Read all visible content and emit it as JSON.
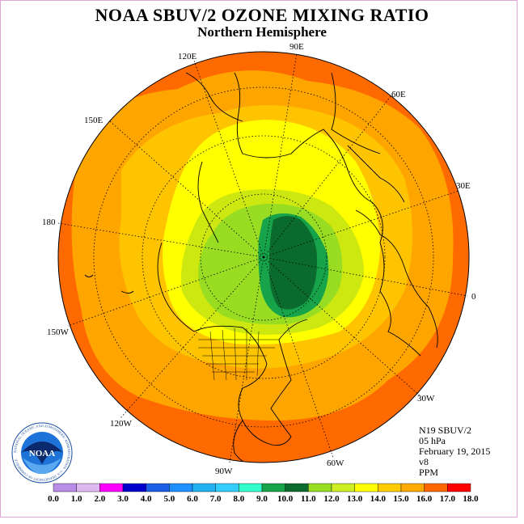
{
  "title": "NOAA SBUV/2 OZONE MIXING RATIO",
  "subtitle": "Northern Hemisphere",
  "logo_text": "NOAA",
  "logo_ring_text": "NATIONAL OCEANIC AND ATMOSPHERIC ADMINISTRATION · U.S. DEPARTMENT OF COMMERCE",
  "longitude_labels": [
    "120E",
    "90E",
    "60E",
    "150E",
    "30E",
    "180",
    "0",
    "150W",
    "30W",
    "120W",
    "60W",
    "90W"
  ],
  "info": {
    "instrument": "N19 SBUV/2",
    "level": "05 hPa",
    "date": "February 19, 2015",
    "version": "v8",
    "units": "PPM"
  },
  "colorbar": {
    "labels": [
      "0.0",
      "1.0",
      "2.0",
      "3.0",
      "4.0",
      "5.0",
      "6.0",
      "7.0",
      "8.0",
      "9.0",
      "10.0",
      "11.0",
      "12.0",
      "13.0",
      "14.0",
      "15.0",
      "16.0",
      "17.0",
      "18.0"
    ],
    "colors": [
      "#b98ce8",
      "#e0b8f0",
      "#ff00ff",
      "#0000cc",
      "#1a5fe6",
      "#1e90ff",
      "#22b2f0",
      "#33ccff",
      "#33ffcc",
      "#16a34a",
      "#0b6b2e",
      "#99dd22",
      "#ccee22",
      "#ffff00",
      "#ffcc00",
      "#ffaa00",
      "#ff6600",
      "#ff0000",
      "#8b4513"
    ]
  },
  "colors": {
    "background": "#ffffff",
    "frame": "#d9a8d9",
    "coast": "#000000",
    "ozone_max_green": "#0b6b2e"
  }
}
